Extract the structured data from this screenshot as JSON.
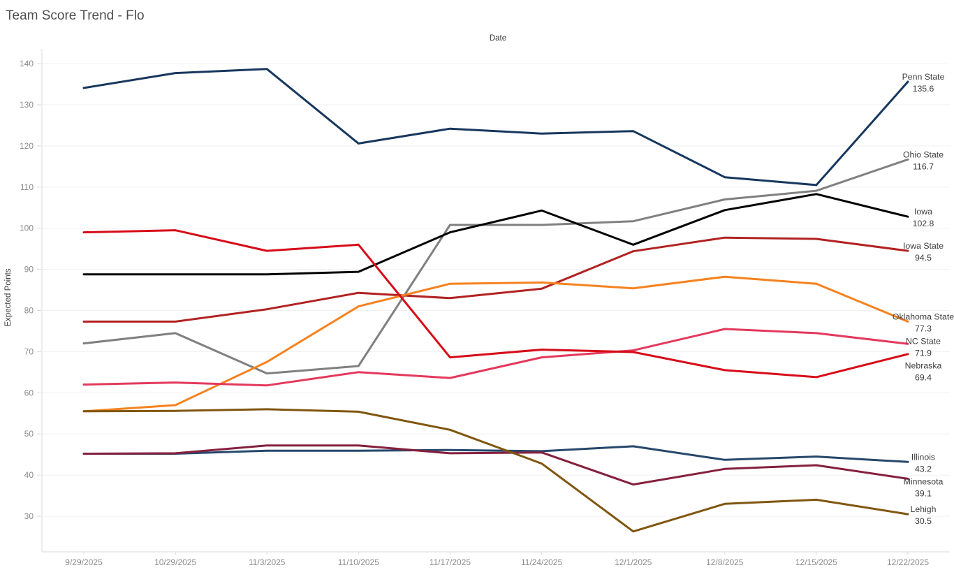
{
  "title": "Team Score Trend - Flo",
  "x_axis_title": "Date",
  "y_axis_title": "Expected Points",
  "chart_data": {
    "type": "line",
    "title": "Team Score Trend - Flo",
    "xlabel": "Date",
    "ylabel": "Expected Points",
    "x": [
      "9/29/2025",
      "10/29/2025",
      "11/3/2025",
      "11/10/2025",
      "11/17/2025",
      "11/24/2025",
      "12/1/2025",
      "12/8/2025",
      "12/15/2025",
      "12/22/2025"
    ],
    "y_ticks": [
      30,
      40,
      50,
      60,
      70,
      80,
      90,
      100,
      110,
      120,
      130,
      140
    ],
    "ylim": [
      24,
      146
    ],
    "grid": "horizontal",
    "legend_position": "end-of-line-labels",
    "series": [
      {
        "name": "Penn State",
        "color": "#17375e",
        "end_label": "135.6",
        "values": [
          134.1,
          137.7,
          138.7,
          120.6,
          124.2,
          123.0,
          123.6,
          112.4,
          110.5,
          135.6
        ]
      },
      {
        "name": "Ohio State",
        "color": "#808080",
        "end_label": "116.7",
        "values": [
          72.0,
          74.5,
          64.7,
          66.5,
          100.8,
          100.8,
          101.7,
          107.0,
          109.1,
          116.7
        ]
      },
      {
        "name": "Iowa",
        "color": "#000000",
        "end_label": "102.8",
        "values": [
          88.8,
          88.8,
          88.8,
          89.4,
          99.0,
          104.3,
          96.0,
          104.4,
          108.3,
          102.8
        ]
      },
      {
        "name": "Iowa State",
        "color": "#b22222",
        "end_label": "94.5",
        "values": [
          77.3,
          77.3,
          80.3,
          84.3,
          83.0,
          85.3,
          94.4,
          97.7,
          97.4,
          94.5
        ]
      },
      {
        "name": "Oklahoma State",
        "color": "#f5821f",
        "end_label": "77.3",
        "values": [
          55.5,
          57.0,
          67.5,
          81.0,
          86.5,
          86.8,
          85.4,
          88.2,
          86.5,
          77.3
        ]
      },
      {
        "name": "NC State",
        "color": "#e4395c",
        "end_label": "71.9",
        "values": [
          62.0,
          62.5,
          61.8,
          65.0,
          63.6,
          68.6,
          70.3,
          75.5,
          74.5,
          71.9
        ]
      },
      {
        "name": "Nebraska",
        "color": "#d60c18",
        "end_label": "69.4",
        "values": [
          99.0,
          99.5,
          94.5,
          96.0,
          68.6,
          70.5,
          69.9,
          65.5,
          63.8,
          69.4
        ]
      },
      {
        "name": "Illinois",
        "color": "#25486b",
        "end_label": "43.2",
        "values": [
          45.2,
          45.2,
          45.9,
          45.9,
          46.1,
          45.8,
          47.0,
          43.7,
          44.5,
          43.2
        ]
      },
      {
        "name": "Minnesota",
        "color": "#85203f",
        "end_label": "39.1",
        "values": [
          45.2,
          45.3,
          47.2,
          47.2,
          45.3,
          45.5,
          37.7,
          41.5,
          42.4,
          39.1
        ]
      },
      {
        "name": "Lehigh",
        "color": "#80560f",
        "end_label": "30.5",
        "values": [
          55.5,
          55.6,
          56.0,
          55.4,
          51.0,
          42.8,
          26.3,
          33.0,
          34.0,
          30.5
        ]
      }
    ]
  },
  "colors": {
    "background": "#ffffff",
    "gridline": "#f0f0f0",
    "axis_line": "#d9d9d9",
    "tick_label": "#8b8b8b",
    "title_text": "#4e4e4e",
    "end_label_text": "#3c3c3c"
  }
}
